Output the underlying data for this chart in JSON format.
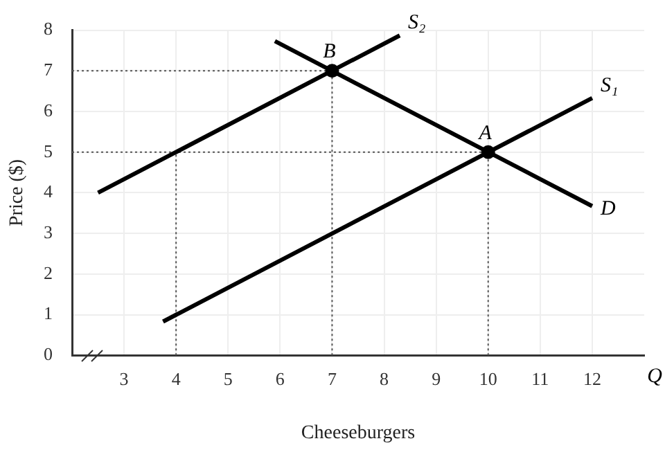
{
  "chart_data": {
    "type": "line",
    "xlabel": "Cheeseburgers",
    "ylabel": "Price ($)",
    "xlim": [
      2,
      13
    ],
    "xticks": [
      3,
      4,
      5,
      6,
      7,
      8,
      9,
      10,
      11,
      12
    ],
    "ylim": [
      0,
      8
    ],
    "yticks": [
      0,
      1,
      2,
      3,
      4,
      5,
      6,
      7,
      8
    ],
    "grid": true,
    "legend": false,
    "marker": "none",
    "line_style": "solid",
    "series": [
      {
        "name": "S₁",
        "color": "#000000",
        "x": [
          3.75,
          12
        ],
        "values": [
          0.83,
          6.33
        ]
      },
      {
        "name": "S₂",
        "color": "#000000",
        "x": [
          2.5,
          8.3
        ],
        "values": [
          4,
          7.87
        ]
      },
      {
        "name": "D",
        "color": "#000000",
        "x": [
          5.9,
          12
        ],
        "values": [
          7.73,
          3.67
        ]
      },
      {
        "color": "#555555",
        "line_style": "dotted",
        "x": [
          2,
          7
        ],
        "values": [
          7,
          7
        ]
      },
      {
        "color": "#555555",
        "line_style": "dotted",
        "x": [
          2,
          10
        ],
        "values": [
          5,
          5
        ]
      },
      {
        "color": "#555555",
        "line_style": "dotted",
        "x": [
          4,
          4
        ],
        "values": [
          0,
          5
        ]
      },
      {
        "color": "#555555",
        "line_style": "dotted",
        "x": [
          7,
          7
        ],
        "values": [
          0,
          7
        ]
      },
      {
        "color": "#555555",
        "line_style": "dotted",
        "x": [
          10,
          10
        ],
        "values": [
          0,
          5
        ]
      },
      {
        "type": "scatter",
        "marker": "circle",
        "color": "#000000",
        "x": [
          7,
          10
        ],
        "values": [
          7,
          5
        ]
      }
    ],
    "annotations": [
      {
        "text": "B",
        "x": 7,
        "y": 7
      },
      {
        "text": "A",
        "x": 10,
        "y": 5
      },
      "Q"
    ]
  }
}
